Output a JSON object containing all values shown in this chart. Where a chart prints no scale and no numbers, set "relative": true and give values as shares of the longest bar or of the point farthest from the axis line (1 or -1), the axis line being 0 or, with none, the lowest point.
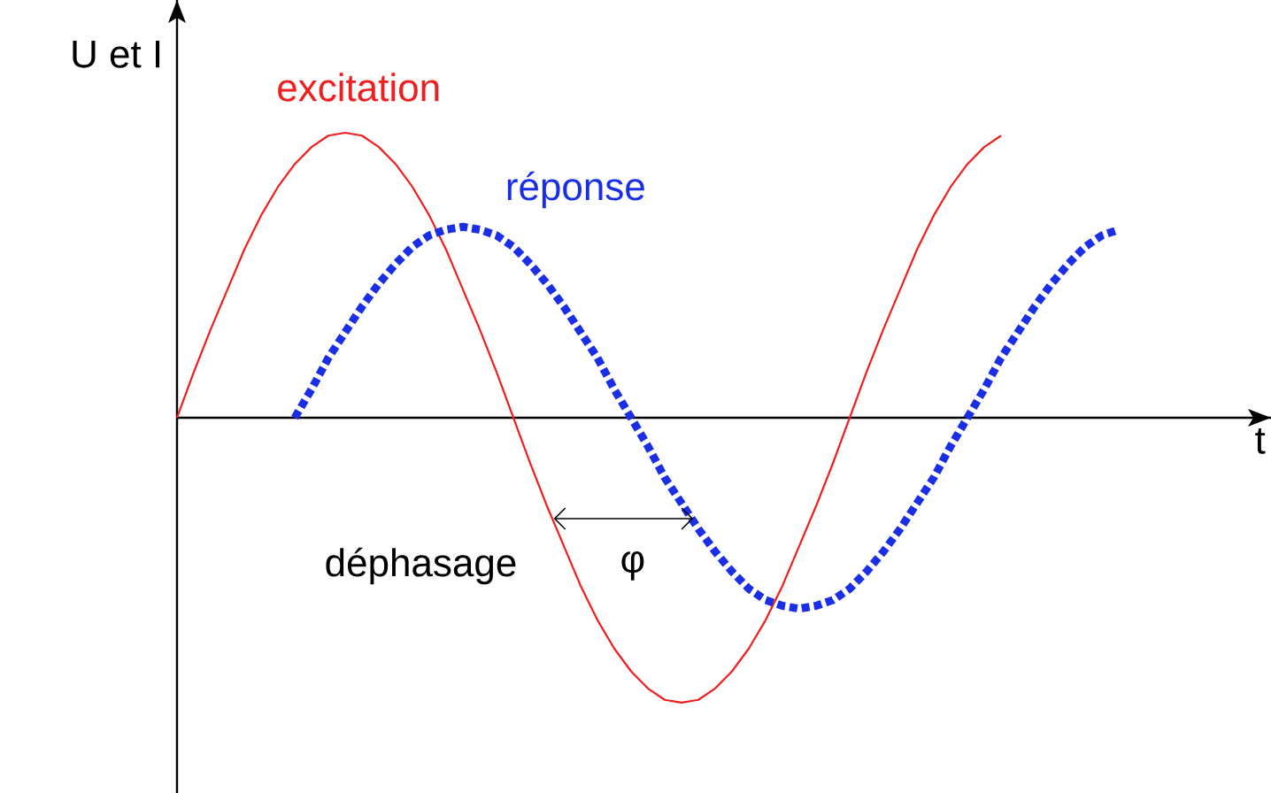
{
  "chart_data": {
    "type": "line",
    "relative": true,
    "xlabel": "t",
    "ylabel": "U et I",
    "categories": [
      null,
      null,
      null,
      null,
      null,
      null,
      null,
      null,
      null,
      null,
      null,
      null,
      null,
      null,
      null,
      null,
      null,
      null,
      null,
      null,
      null,
      null,
      null,
      null,
      null,
      null,
      null,
      null,
      null,
      null,
      null,
      null,
      null,
      null,
      null,
      null,
      null,
      null,
      null,
      null,
      null,
      null,
      null,
      null,
      null,
      null,
      null,
      null,
      null,
      null,
      null,
      null,
      null,
      null,
      null,
      null,
      null
    ],
    "series": [
      {
        "name": "excitation",
        "color": "#f01e1e",
        "marker": "none",
        "values": [
          0,
          0.16,
          0.31,
          0.45,
          0.59,
          0.71,
          0.81,
          0.89,
          0.95,
          0.99,
          1,
          0.99,
          0.95,
          0.89,
          0.81,
          0.71,
          0.59,
          0.45,
          0.31,
          0.16,
          0,
          -0.16,
          -0.31,
          -0.45,
          -0.59,
          -0.71,
          -0.81,
          -0.89,
          -0.95,
          -0.99,
          -1,
          -0.99,
          -0.95,
          -0.89,
          -0.81,
          -0.71,
          -0.59,
          -0.45,
          -0.31,
          -0.16,
          0,
          0.16,
          0.31,
          0.45,
          0.59,
          0.71,
          0.81,
          0.89,
          0.95,
          0.99,
          null,
          null,
          null,
          null,
          null,
          null,
          null
        ]
      },
      {
        "name": "réponse",
        "color": "#1a2ee6",
        "line_style": "dotted",
        "values": [
          null,
          null,
          null,
          null,
          null,
          null,
          null,
          0,
          0.1,
          0.21,
          0.3,
          0.39,
          0.47,
          0.54,
          0.6,
          0.64,
          0.66,
          0.67,
          0.66,
          0.64,
          0.6,
          0.54,
          0.47,
          0.39,
          0.3,
          0.21,
          0.1,
          0,
          -0.1,
          -0.21,
          -0.3,
          -0.39,
          -0.47,
          -0.54,
          -0.6,
          -0.64,
          -0.66,
          -0.67,
          -0.66,
          -0.64,
          -0.6,
          -0.54,
          -0.47,
          -0.39,
          -0.3,
          -0.21,
          -0.1,
          0,
          0.1,
          0.21,
          0.3,
          0.39,
          0.47,
          0.54,
          0.6,
          0.64,
          0.66
        ]
      }
    ],
    "annotations": [
      "déphasage",
      "φ"
    ]
  }
}
